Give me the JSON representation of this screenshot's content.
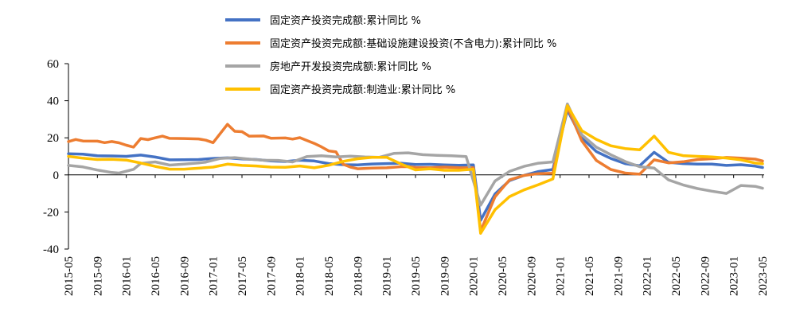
{
  "chart_data": {
    "type": "line",
    "title": "",
    "xlabel": "",
    "ylabel": "",
    "ylim": [
      -40,
      60
    ],
    "yticks": [
      "60",
      "40",
      "20",
      "0",
      "-20",
      "-40"
    ],
    "ytick_values": [
      60,
      40,
      20,
      0,
      -20,
      -40
    ],
    "x_start": "2015-05",
    "x_end": "2023-05",
    "xticks": [
      "2015-05",
      "2015-09",
      "2016-01",
      "2016-05",
      "2016-09",
      "2017-01",
      "2017-05",
      "2017-09",
      "2018-01",
      "2018-05",
      "2018-09",
      "2019-01",
      "2019-05",
      "2019-09",
      "2020-01",
      "2020-05",
      "2020-09",
      "2021-01",
      "2021-05",
      "2021-09",
      "2022-01",
      "2022-05",
      "2022-09",
      "2023-01",
      "2023-05"
    ],
    "legend_position": "top",
    "grid": false,
    "series": [
      {
        "name": "固定资产投资完成额:累计同比 %",
        "color": "#4472C4",
        "points": [
          [
            "2015-05",
            11.4
          ],
          [
            "2015-07",
            11.2
          ],
          [
            "2015-09",
            10.3
          ],
          [
            "2015-11",
            10.2
          ],
          [
            "2016-01",
            10.0
          ],
          [
            "2016-03",
            10.7
          ],
          [
            "2016-05",
            9.6
          ],
          [
            "2016-07",
            8.1
          ],
          [
            "2016-09",
            8.2
          ],
          [
            "2016-11",
            8.3
          ],
          [
            "2017-01",
            8.9
          ],
          [
            "2017-03",
            9.2
          ],
          [
            "2017-05",
            8.6
          ],
          [
            "2017-07",
            8.3
          ],
          [
            "2017-09",
            7.5
          ],
          [
            "2017-11",
            7.2
          ],
          [
            "2018-01",
            7.9
          ],
          [
            "2018-03",
            7.5
          ],
          [
            "2018-05",
            6.1
          ],
          [
            "2018-07",
            5.5
          ],
          [
            "2018-09",
            5.4
          ],
          [
            "2018-11",
            5.9
          ],
          [
            "2019-01",
            6.1
          ],
          [
            "2019-03",
            6.3
          ],
          [
            "2019-05",
            5.6
          ],
          [
            "2019-07",
            5.7
          ],
          [
            "2019-09",
            5.4
          ],
          [
            "2019-11",
            5.2
          ],
          [
            "2020-01",
            5.4
          ],
          [
            "2020-02",
            -24.5
          ],
          [
            "2020-04",
            -10.3
          ],
          [
            "2020-06",
            -3.1
          ],
          [
            "2020-08",
            -0.3
          ],
          [
            "2020-10",
            1.8
          ],
          [
            "2020-12",
            2.9
          ],
          [
            "2021-02",
            35.0
          ],
          [
            "2021-04",
            19.9
          ],
          [
            "2021-06",
            12.6
          ],
          [
            "2021-08",
            8.9
          ],
          [
            "2021-10",
            6.1
          ],
          [
            "2021-12",
            4.9
          ],
          [
            "2022-02",
            12.2
          ],
          [
            "2022-04",
            6.8
          ],
          [
            "2022-06",
            6.1
          ],
          [
            "2022-08",
            5.8
          ],
          [
            "2022-10",
            5.8
          ],
          [
            "2022-12",
            5.1
          ],
          [
            "2023-02",
            5.5
          ],
          [
            "2023-04",
            4.7
          ],
          [
            "2023-05",
            4.0
          ]
        ]
      },
      {
        "name": "固定资产投资完成额:基础设施建设投资(不含电力):累计同比 %",
        "color": "#ED7D31",
        "points": [
          [
            "2015-05",
            18.0
          ],
          [
            "2015-06",
            19.1
          ],
          [
            "2015-07",
            18.3
          ],
          [
            "2015-09",
            18.2
          ],
          [
            "2015-10",
            17.4
          ],
          [
            "2015-11",
            18.0
          ],
          [
            "2015-12",
            17.3
          ],
          [
            "2016-01",
            16.0
          ],
          [
            "2016-02",
            15.0
          ],
          [
            "2016-03",
            19.6
          ],
          [
            "2016-04",
            19.0
          ],
          [
            "2016-05",
            20.0
          ],
          [
            "2016-06",
            20.9
          ],
          [
            "2016-07",
            19.7
          ],
          [
            "2016-09",
            19.6
          ],
          [
            "2016-11",
            19.4
          ],
          [
            "2016-12",
            18.7
          ],
          [
            "2017-01",
            17.4
          ],
          [
            "2017-03",
            27.3
          ],
          [
            "2017-04",
            23.5
          ],
          [
            "2017-05",
            23.3
          ],
          [
            "2017-06",
            20.9
          ],
          [
            "2017-08",
            21.0
          ],
          [
            "2017-09",
            19.8
          ],
          [
            "2017-11",
            19.9
          ],
          [
            "2017-12",
            19.3
          ],
          [
            "2018-01",
            20.1
          ],
          [
            "2018-03",
            17.0
          ],
          [
            "2018-04",
            15.1
          ],
          [
            "2018-05",
            12.9
          ],
          [
            "2018-06",
            12.4
          ],
          [
            "2018-07",
            5.7
          ],
          [
            "2018-08",
            4.2
          ],
          [
            "2018-09",
            3.3
          ],
          [
            "2018-11",
            3.7
          ],
          [
            "2019-01",
            3.8
          ],
          [
            "2019-03",
            4.4
          ],
          [
            "2019-04",
            4.4
          ],
          [
            "2019-05",
            4.0
          ],
          [
            "2019-07",
            3.9
          ],
          [
            "2019-09",
            4.2
          ],
          [
            "2019-11",
            3.9
          ],
          [
            "2020-01",
            3.8
          ],
          [
            "2020-02",
            -30.3
          ],
          [
            "2020-04",
            -11.8
          ],
          [
            "2020-06",
            -2.7
          ],
          [
            "2020-08",
            -0.3
          ],
          [
            "2020-10",
            0.7
          ],
          [
            "2020-12",
            0.9
          ],
          [
            "2021-02",
            36.6
          ],
          [
            "2021-04",
            18.4
          ],
          [
            "2021-06",
            7.8
          ],
          [
            "2021-08",
            2.9
          ],
          [
            "2021-10",
            1.0
          ],
          [
            "2021-12",
            0.4
          ],
          [
            "2022-02",
            8.1
          ],
          [
            "2022-04",
            6.5
          ],
          [
            "2022-06",
            7.1
          ],
          [
            "2022-08",
            8.3
          ],
          [
            "2022-10",
            8.7
          ],
          [
            "2022-12",
            9.4
          ],
          [
            "2023-02",
            9.0
          ],
          [
            "2023-04",
            8.5
          ],
          [
            "2023-05",
            7.5
          ]
        ]
      },
      {
        "name": "房地产开发投资完成额:累计同比 %",
        "color": "#A5A5A5",
        "points": [
          [
            "2015-05",
            5.1
          ],
          [
            "2015-07",
            4.3
          ],
          [
            "2015-09",
            2.6
          ],
          [
            "2015-11",
            1.3
          ],
          [
            "2015-12",
            1.0
          ],
          [
            "2016-02",
            3.0
          ],
          [
            "2016-03",
            6.2
          ],
          [
            "2016-05",
            7.0
          ],
          [
            "2016-07",
            5.3
          ],
          [
            "2016-09",
            5.8
          ],
          [
            "2016-11",
            6.5
          ],
          [
            "2016-12",
            6.9
          ],
          [
            "2017-02",
            8.9
          ],
          [
            "2017-04",
            9.3
          ],
          [
            "2017-06",
            8.5
          ],
          [
            "2017-08",
            7.9
          ],
          [
            "2017-10",
            7.8
          ],
          [
            "2017-12",
            7.0
          ],
          [
            "2018-02",
            9.9
          ],
          [
            "2018-04",
            10.3
          ],
          [
            "2018-06",
            9.7
          ],
          [
            "2018-08",
            10.1
          ],
          [
            "2018-10",
            9.7
          ],
          [
            "2018-12",
            9.5
          ],
          [
            "2019-02",
            11.6
          ],
          [
            "2019-04",
            11.9
          ],
          [
            "2019-06",
            10.9
          ],
          [
            "2019-08",
            10.5
          ],
          [
            "2019-10",
            10.3
          ],
          [
            "2019-12",
            9.9
          ],
          [
            "2020-02",
            -16.3
          ],
          [
            "2020-04",
            -3.3
          ],
          [
            "2020-06",
            1.9
          ],
          [
            "2020-08",
            4.6
          ],
          [
            "2020-10",
            6.3
          ],
          [
            "2020-12",
            7.0
          ],
          [
            "2021-02",
            38.3
          ],
          [
            "2021-04",
            21.6
          ],
          [
            "2021-06",
            15.0
          ],
          [
            "2021-08",
            10.9
          ],
          [
            "2021-10",
            7.2
          ],
          [
            "2021-12",
            4.4
          ],
          [
            "2022-02",
            3.7
          ],
          [
            "2022-04",
            -2.7
          ],
          [
            "2022-06",
            -5.4
          ],
          [
            "2022-08",
            -7.4
          ],
          [
            "2022-10",
            -8.8
          ],
          [
            "2022-12",
            -10.0
          ],
          [
            "2023-02",
            -5.7
          ],
          [
            "2023-04",
            -6.2
          ],
          [
            "2023-05",
            -7.2
          ]
        ]
      },
      {
        "name": "固定资产投资完成额:制造业:累计同比 %",
        "color": "#FFC000",
        "points": [
          [
            "2015-05",
            10.0
          ],
          [
            "2015-07",
            9.0
          ],
          [
            "2015-09",
            8.3
          ],
          [
            "2015-11",
            8.4
          ],
          [
            "2016-01",
            8.0
          ],
          [
            "2016-03",
            6.4
          ],
          [
            "2016-05",
            4.6
          ],
          [
            "2016-07",
            3.1
          ],
          [
            "2016-09",
            3.1
          ],
          [
            "2016-11",
            3.6
          ],
          [
            "2017-01",
            4.2
          ],
          [
            "2017-03",
            5.8
          ],
          [
            "2017-05",
            5.1
          ],
          [
            "2017-07",
            4.8
          ],
          [
            "2017-09",
            4.2
          ],
          [
            "2017-11",
            4.1
          ],
          [
            "2018-01",
            4.8
          ],
          [
            "2018-03",
            3.8
          ],
          [
            "2018-05",
            5.2
          ],
          [
            "2018-07",
            7.3
          ],
          [
            "2018-09",
            8.7
          ],
          [
            "2018-11",
            9.5
          ],
          [
            "2019-01",
            9.5
          ],
          [
            "2019-03",
            5.9
          ],
          [
            "2019-05",
            2.7
          ],
          [
            "2019-07",
            3.3
          ],
          [
            "2019-09",
            2.5
          ],
          [
            "2019-11",
            2.5
          ],
          [
            "2020-01",
            3.1
          ],
          [
            "2020-02",
            -31.5
          ],
          [
            "2020-04",
            -18.8
          ],
          [
            "2020-06",
            -11.7
          ],
          [
            "2020-08",
            -8.1
          ],
          [
            "2020-10",
            -5.3
          ],
          [
            "2020-12",
            -2.2
          ],
          [
            "2021-02",
            37.3
          ],
          [
            "2021-04",
            23.8
          ],
          [
            "2021-06",
            19.2
          ],
          [
            "2021-08",
            15.7
          ],
          [
            "2021-10",
            14.2
          ],
          [
            "2021-12",
            13.5
          ],
          [
            "2022-02",
            20.9
          ],
          [
            "2022-04",
            12.2
          ],
          [
            "2022-06",
            10.4
          ],
          [
            "2022-08",
            10.0
          ],
          [
            "2022-10",
            9.7
          ],
          [
            "2022-12",
            9.1
          ],
          [
            "2023-02",
            8.1
          ],
          [
            "2023-04",
            6.4
          ],
          [
            "2023-05",
            6.0
          ]
        ]
      }
    ]
  }
}
